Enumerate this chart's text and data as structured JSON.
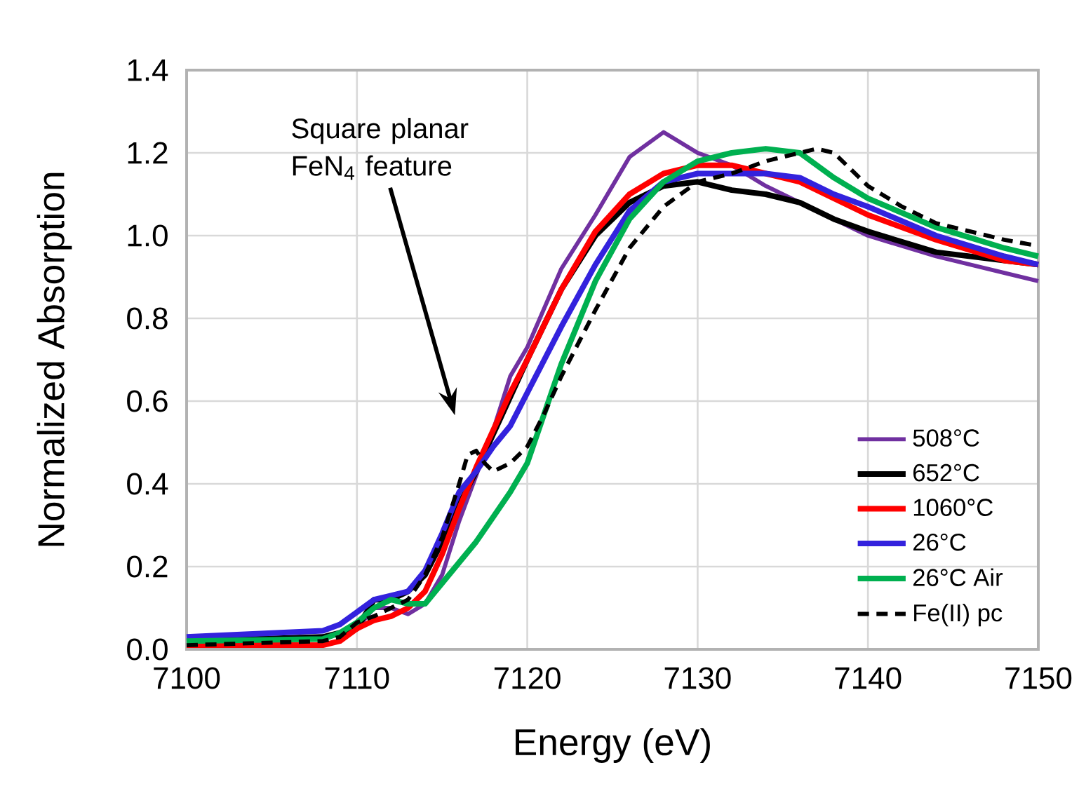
{
  "chart_data": {
    "type": "line",
    "xlabel": "Energy (eV)",
    "ylabel": "Normalized Absorption",
    "xlim": [
      7100,
      7150
    ],
    "ylim": [
      0,
      1.4
    ],
    "xticks": [
      7100,
      7110,
      7120,
      7130,
      7140,
      7150
    ],
    "yticks": [
      {
        "value": 0,
        "label": "0.0"
      },
      0.2,
      0.4,
      0.6,
      0.8,
      {
        "value": 1,
        "label": "1.0"
      },
      1.2,
      1.4
    ],
    "grid": true,
    "legend": "bottom right",
    "marker": "none",
    "annotations": [
      "Square planar FeN$_{4}$ feature"
    ],
    "x": [
      7100,
      7108,
      7109,
      7110,
      7111,
      7112,
      7113,
      7114,
      7115,
      7116,
      7117,
      7118,
      7119,
      7120,
      7122,
      7124,
      7126,
      7128,
      7130,
      7132,
      7134,
      7136,
      7138,
      7140,
      7144,
      7148,
      7150
    ],
    "series": [
      {
        "name": "508°C",
        "color": "#7030a0",
        "line_style": "solid",
        "values": [
          0.02,
          0.03,
          0.04,
          0.05,
          0.1,
          0.1,
          0.085,
          0.11,
          0.18,
          0.31,
          0.42,
          0.53,
          0.66,
          0.73,
          0.92,
          1.05,
          1.19,
          1.25,
          1.2,
          1.17,
          1.12,
          1.08,
          1.04,
          1.0,
          0.95,
          0.91,
          0.89
        ]
      },
      {
        "name": "652°C",
        "color": "#000000",
        "line_style": "solid",
        "values": [
          0.02,
          0.03,
          0.04,
          0.05,
          0.12,
          0.12,
          0.14,
          0.18,
          0.26,
          0.35,
          0.43,
          0.52,
          0.61,
          0.7,
          0.87,
          1.0,
          1.08,
          1.12,
          1.13,
          1.11,
          1.1,
          1.08,
          1.04,
          1.01,
          0.96,
          0.94,
          0.93
        ]
      },
      {
        "name": "1060°C",
        "color": "#ff0000",
        "line_style": "solid",
        "values": [
          0.01,
          0.01,
          0.02,
          0.05,
          0.07,
          0.08,
          0.1,
          0.14,
          0.23,
          0.34,
          0.44,
          0.53,
          0.62,
          0.7,
          0.87,
          1.01,
          1.1,
          1.15,
          1.17,
          1.17,
          1.15,
          1.13,
          1.09,
          1.05,
          0.99,
          0.94,
          0.93
        ]
      },
      {
        "name": "26°C",
        "color": "#3322dd",
        "line_style": "solid",
        "values": [
          0.03,
          0.045,
          0.06,
          0.09,
          0.12,
          0.13,
          0.14,
          0.19,
          0.28,
          0.38,
          0.43,
          0.49,
          0.54,
          0.62,
          0.78,
          0.93,
          1.06,
          1.13,
          1.15,
          1.15,
          1.15,
          1.14,
          1.1,
          1.07,
          1.0,
          0.95,
          0.93
        ]
      },
      {
        "name": "26°C Air",
        "color": "#00b050",
        "line_style": "solid",
        "values": [
          0.02,
          0.025,
          0.04,
          0.065,
          0.1,
          0.12,
          0.11,
          0.11,
          0.16,
          0.21,
          0.26,
          0.32,
          0.38,
          0.45,
          0.69,
          0.89,
          1.04,
          1.13,
          1.18,
          1.2,
          1.21,
          1.2,
          1.14,
          1.09,
          1.02,
          0.97,
          0.95
        ]
      },
      {
        "name": "Fe(II) pc",
        "color": "#000000",
        "line_style": "dashed",
        "x": [
          7100,
          7108,
          7109,
          7110,
          7111,
          7112,
          7113,
          7114,
          7115,
          7116,
          7116.5,
          7117,
          7117.5,
          7118,
          7119,
          7120,
          7121,
          7122,
          7124,
          7126,
          7128,
          7130,
          7132,
          7134,
          7136,
          7137,
          7138,
          7140,
          7142,
          7144,
          7148,
          7150
        ],
        "values": [
          0.01,
          0.02,
          0.03,
          0.065,
          0.08,
          0.1,
          0.12,
          0.18,
          0.27,
          0.4,
          0.47,
          0.48,
          0.45,
          0.43,
          0.45,
          0.49,
          0.57,
          0.66,
          0.82,
          0.97,
          1.07,
          1.13,
          1.15,
          1.18,
          1.2,
          1.21,
          1.2,
          1.12,
          1.07,
          1.03,
          0.99,
          0.975
        ]
      }
    ]
  }
}
